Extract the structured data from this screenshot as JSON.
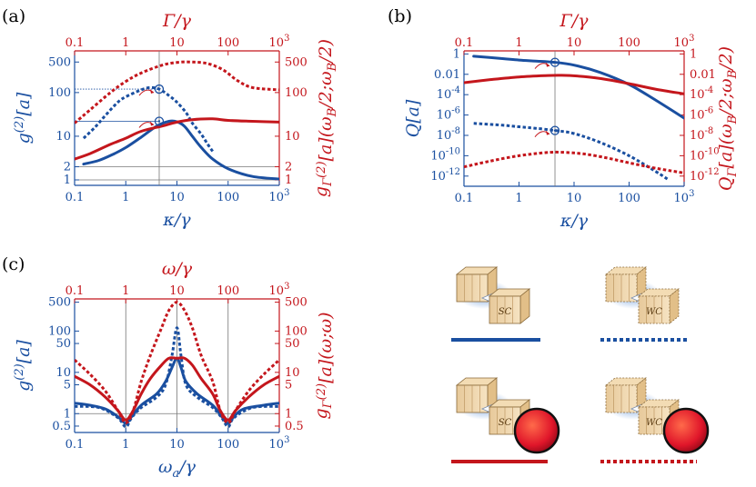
{
  "colors": {
    "blue": "#1a4fa0",
    "red": "#c4161c",
    "grid": "#777777"
  },
  "legend": {
    "cells": [
      {
        "device_label": "SC",
        "style": "solid",
        "color": "#1a4fa0",
        "filter": false
      },
      {
        "device_label": "WC",
        "style": "dotted",
        "color": "#1a4fa0",
        "filter": false
      },
      {
        "device_label": "SC",
        "style": "solid",
        "color": "#c4161c",
        "filter": true
      },
      {
        "device_label": "WC",
        "style": "dotted",
        "color": "#c4161c",
        "filter": true
      }
    ]
  },
  "chart_data": [
    {
      "type": "line",
      "panel_label": "(a)",
      "xlabel": "κ/γ",
      "top_xlabel": "Γ/γ",
      "ylabel_left": "g(2)[a]",
      "ylabel_right": "gΓ(2)[a](ωB/2;ωB/2)",
      "xlim": [
        0.1,
        1000
      ],
      "ylim": [
        0.75,
        900
      ],
      "xticks": [
        "0.1",
        "1",
        "10",
        "100",
        "10^3"
      ],
      "top_xticks": [
        "0.1",
        "1",
        "10",
        "100",
        "10^3"
      ],
      "yticks_left": [
        {
          "v": 1,
          "label": "1"
        },
        {
          "v": 2,
          "label": "2"
        },
        {
          "v": 10,
          "label": "10"
        },
        {
          "v": 100,
          "label": "100"
        },
        {
          "v": 500,
          "label": "500"
        }
      ],
      "yticks_right": [
        {
          "v": 1,
          "label": "1"
        },
        {
          "v": 2,
          "label": "2"
        },
        {
          "v": 10,
          "label": "10"
        },
        {
          "v": 100,
          "label": "100"
        },
        {
          "v": 500,
          "label": "500"
        }
      ],
      "vertical_ref": 4.5,
      "hlines": [
        1,
        2,
        22,
        120
      ],
      "markers": [
        {
          "x": 4.5,
          "y": 120
        },
        {
          "x": 4.5,
          "y": 22
        }
      ],
      "series": [
        {
          "name": "blue solid",
          "color": "blue",
          "style": "solid",
          "points": [
            [
              0.15,
              2.3
            ],
            [
              0.3,
              2.8
            ],
            [
              0.6,
              4
            ],
            [
              1,
              5.5
            ],
            [
              2,
              9.5
            ],
            [
              4,
              17
            ],
            [
              7,
              22
            ],
            [
              10,
              21.5
            ],
            [
              14,
              17
            ],
            [
              20,
              10
            ],
            [
              30,
              5.5
            ],
            [
              50,
              3
            ],
            [
              100,
              1.8
            ],
            [
              300,
              1.2
            ],
            [
              1000,
              1.05
            ]
          ]
        },
        {
          "name": "blue dotted",
          "color": "blue",
          "style": "dotted",
          "points": [
            [
              0.15,
              9
            ],
            [
              0.25,
              16
            ],
            [
              0.4,
              30
            ],
            [
              0.7,
              60
            ],
            [
              1,
              80
            ],
            [
              2,
              115
            ],
            [
              3,
              130
            ],
            [
              4.5,
              120
            ],
            [
              7,
              85
            ],
            [
              10,
              60
            ],
            [
              15,
              35
            ],
            [
              20,
              20
            ],
            [
              30,
              11
            ],
            [
              40,
              6.5
            ],
            [
              50,
              4.5
            ]
          ]
        },
        {
          "name": "red solid",
          "color": "red",
          "style": "solid",
          "points": [
            [
              0.1,
              3
            ],
            [
              0.2,
              4
            ],
            [
              0.5,
              6.5
            ],
            [
              1,
              9
            ],
            [
              2,
              13
            ],
            [
              5,
              17
            ],
            [
              10,
              21
            ],
            [
              20,
              24
            ],
            [
              50,
              25
            ],
            [
              100,
              23
            ],
            [
              300,
              22
            ],
            [
              1000,
              21
            ]
          ]
        },
        {
          "name": "red dotted",
          "color": "red",
          "style": "dotted",
          "points": [
            [
              0.1,
              20
            ],
            [
              0.2,
              40
            ],
            [
              0.5,
              100
            ],
            [
              1,
              180
            ],
            [
              2,
              280
            ],
            [
              5,
              420
            ],
            [
              10,
              490
            ],
            [
              20,
              500
            ],
            [
              40,
              460
            ],
            [
              80,
              330
            ],
            [
              150,
              190
            ],
            [
              300,
              130
            ],
            [
              1000,
              115
            ]
          ]
        }
      ]
    },
    {
      "type": "line",
      "panel_label": "(b)",
      "xlabel": "κ/γ",
      "top_xlabel": "Γ/γ",
      "ylabel_left": "Q[a]",
      "ylabel_right": "QΓ[a](ωB/2;ωB/2)",
      "xlim": [
        0.1,
        1000
      ],
      "ylim": [
        1e-13,
        2
      ],
      "xticks": [
        "0.1",
        "1",
        "10",
        "100",
        "10^3"
      ],
      "top_xticks": [
        "0.1",
        "1",
        "10",
        "100",
        "10^3"
      ],
      "yticks_left": [
        {
          "v": 1,
          "label": "1"
        },
        {
          "v": 0.01,
          "label": "0.01"
        },
        {
          "v": 0.0001,
          "label": "10^-4"
        },
        {
          "v": 1e-06,
          "label": "10^-6"
        },
        {
          "v": 1e-08,
          "label": "10^-8"
        },
        {
          "v": 1e-10,
          "label": "10^-10"
        },
        {
          "v": 1e-12,
          "label": "10^-12"
        }
      ],
      "yticks_right": [
        {
          "v": 1,
          "label": "1"
        },
        {
          "v": 0.01,
          "label": "0.01"
        },
        {
          "v": 0.0001,
          "label": "10^-4"
        },
        {
          "v": 1e-06,
          "label": "10^-6"
        },
        {
          "v": 1e-08,
          "label": "10^-8"
        },
        {
          "v": 1e-10,
          "label": "10^-10"
        },
        {
          "v": 1e-12,
          "label": "10^-12"
        }
      ],
      "vertical_ref": 4.5,
      "hlines": [],
      "markers": [
        {
          "x": 4.5,
          "y": 0.15
        },
        {
          "x": 4.5,
          "y": 3e-08
        }
      ],
      "series": [
        {
          "name": "blue solid",
          "color": "blue",
          "style": "solid",
          "points": [
            [
              0.15,
              0.6
            ],
            [
              0.5,
              0.35
            ],
            [
              1,
              0.25
            ],
            [
              2,
              0.2
            ],
            [
              4.5,
              0.15
            ],
            [
              10,
              0.08
            ],
            [
              30,
              0.015
            ],
            [
              100,
              0.001
            ],
            [
              300,
              3e-05
            ],
            [
              1000,
              5e-07
            ]
          ]
        },
        {
          "name": "blue dotted",
          "color": "blue",
          "style": "dotted",
          "points": [
            [
              0.15,
              1.5e-07
            ],
            [
              0.5,
              1e-07
            ],
            [
              1,
              7e-08
            ],
            [
              2,
              5e-08
            ],
            [
              4.5,
              3e-08
            ],
            [
              10,
              1.5e-08
            ],
            [
              30,
              2e-09
            ],
            [
              100,
              1e-10
            ],
            [
              300,
              3e-12
            ],
            [
              500,
              5e-13
            ]
          ]
        },
        {
          "name": "red solid",
          "color": "red",
          "style": "solid",
          "points": [
            [
              0.1,
              0.0015
            ],
            [
              0.3,
              0.003
            ],
            [
              1,
              0.0055
            ],
            [
              3,
              0.0075
            ],
            [
              6,
              0.008
            ],
            [
              15,
              0.006
            ],
            [
              40,
              0.003
            ],
            [
              100,
              0.0012
            ],
            [
              300,
              0.00035
            ],
            [
              1000,
              0.00012
            ]
          ]
        },
        {
          "name": "red dotted",
          "color": "red",
          "style": "dotted",
          "points": [
            [
              0.1,
              8e-12
            ],
            [
              0.3,
              3e-11
            ],
            [
              1,
              1e-10
            ],
            [
              3,
              2e-10
            ],
            [
              6,
              2.2e-10
            ],
            [
              15,
              1.5e-10
            ],
            [
              40,
              6e-11
            ],
            [
              100,
              2e-11
            ],
            [
              300,
              6e-12
            ],
            [
              1000,
              2e-12
            ]
          ]
        }
      ]
    },
    {
      "type": "line",
      "panel_label": "(c)",
      "xlabel": "ωa/γ",
      "top_xlabel": "ω/γ",
      "ylabel_left": "g(2)[a]",
      "ylabel_right": "gΓ(2)[a](ω;ω)",
      "xlim": [
        0.1,
        1000
      ],
      "ylim": [
        0.35,
        600
      ],
      "xticks": [
        "0.1",
        "1",
        "10",
        "100",
        "10^3"
      ],
      "top_xticks": [
        "0.1",
        "1",
        "10",
        "100",
        "10^3"
      ],
      "yticks_left": [
        {
          "v": 0.5,
          "label": "0.5"
        },
        {
          "v": 1,
          "label": "1"
        },
        {
          "v": 5,
          "label": "5"
        },
        {
          "v": 10,
          "label": "10"
        },
        {
          "v": 50,
          "label": "50"
        },
        {
          "v": 100,
          "label": "100"
        },
        {
          "v": 500,
          "label": "500"
        }
      ],
      "yticks_right": [
        {
          "v": 0.5,
          "label": "0.5"
        },
        {
          "v": 1,
          "label": "1"
        },
        {
          "v": 5,
          "label": "5"
        },
        {
          "v": 10,
          "label": "10"
        },
        {
          "v": 50,
          "label": "50"
        },
        {
          "v": 100,
          "label": "100"
        },
        {
          "v": 500,
          "label": "500"
        }
      ],
      "vertical_refs": [
        1,
        10,
        100
      ],
      "hlines": [
        1
      ],
      "markers": [],
      "series": [
        {
          "name": "blue solid",
          "color": "blue",
          "style": "solid",
          "points": [
            [
              0.1,
              1.8
            ],
            [
              0.2,
              1.6
            ],
            [
              0.4,
              1.3
            ],
            [
              0.7,
              0.85
            ],
            [
              1,
              0.58
            ],
            [
              1.3,
              0.85
            ],
            [
              2,
              1.6
            ],
            [
              4,
              3
            ],
            [
              6,
              6
            ],
            [
              8,
              13
            ],
            [
              10,
              22
            ],
            [
              12,
              13
            ],
            [
              15,
              6
            ],
            [
              25,
              3
            ],
            [
              50,
              1.6
            ],
            [
              75,
              0.85
            ],
            [
              100,
              0.58
            ],
            [
              130,
              0.85
            ],
            [
              200,
              1.3
            ],
            [
              500,
              1.6
            ],
            [
              1000,
              1.8
            ]
          ]
        },
        {
          "name": "blue dotted",
          "color": "blue",
          "style": "dotted",
          "points": [
            [
              0.1,
              1.5
            ],
            [
              0.3,
              1.4
            ],
            [
              0.7,
              0.8
            ],
            [
              1,
              0.48
            ],
            [
              1.3,
              0.8
            ],
            [
              2,
              1.4
            ],
            [
              4,
              2.5
            ],
            [
              6,
              5
            ],
            [
              8,
              25
            ],
            [
              10,
              120
            ],
            [
              12,
              25
            ],
            [
              15,
              5
            ],
            [
              25,
              2.5
            ],
            [
              50,
              1.4
            ],
            [
              75,
              0.8
            ],
            [
              100,
              0.48
            ],
            [
              130,
              0.8
            ],
            [
              300,
              1.4
            ],
            [
              1000,
              1.5
            ]
          ]
        },
        {
          "name": "red solid",
          "color": "red",
          "style": "solid",
          "points": [
            [
              0.1,
              8
            ],
            [
              0.2,
              5
            ],
            [
              0.4,
              2.5
            ],
            [
              0.7,
              1.2
            ],
            [
              1,
              0.7
            ],
            [
              1.4,
              1.2
            ],
            [
              2,
              3
            ],
            [
              3,
              7
            ],
            [
              5,
              15
            ],
            [
              7,
              22
            ],
            [
              10,
              22
            ],
            [
              14,
              22
            ],
            [
              20,
              15
            ],
            [
              30,
              7
            ],
            [
              50,
              3
            ],
            [
              70,
              1.2
            ],
            [
              100,
              0.7
            ],
            [
              140,
              1.2
            ],
            [
              250,
              2.5
            ],
            [
              500,
              5
            ],
            [
              1000,
              8
            ]
          ]
        },
        {
          "name": "red dotted",
          "color": "red",
          "style": "dotted",
          "points": [
            [
              0.1,
              20
            ],
            [
              0.2,
              9
            ],
            [
              0.4,
              3.5
            ],
            [
              0.7,
              1.2
            ],
            [
              1,
              0.6
            ],
            [
              1.4,
              1.2
            ],
            [
              2,
              6
            ],
            [
              3,
              25
            ],
            [
              5,
              120
            ],
            [
              7,
              320
            ],
            [
              10,
              500
            ],
            [
              14,
              320
            ],
            [
              20,
              120
            ],
            [
              30,
              25
            ],
            [
              50,
              6
            ],
            [
              70,
              1.2
            ],
            [
              100,
              0.6
            ],
            [
              140,
              1.2
            ],
            [
              250,
              3.5
            ],
            [
              500,
              9
            ],
            [
              1000,
              20
            ]
          ]
        }
      ]
    }
  ]
}
